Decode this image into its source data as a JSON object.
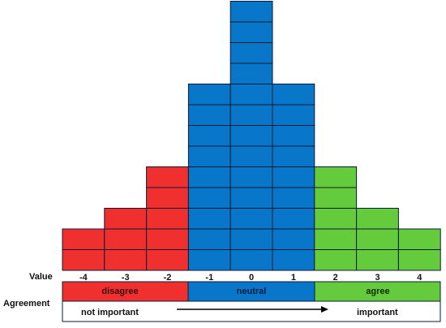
{
  "grid": {
    "columns": [
      {
        "value": "-4",
        "cells": 2,
        "band": "disagree"
      },
      {
        "value": "-3",
        "cells": 3,
        "band": "disagree"
      },
      {
        "value": "-2",
        "cells": 5,
        "band": "disagree"
      },
      {
        "value": "-1",
        "cells": 9,
        "band": "neutral"
      },
      {
        "value": "0",
        "cells": 13,
        "band": "neutral"
      },
      {
        "value": "1",
        "cells": 9,
        "band": "neutral"
      },
      {
        "value": "2",
        "cells": 5,
        "band": "agree"
      },
      {
        "value": "3",
        "cells": 3,
        "band": "agree"
      },
      {
        "value": "4",
        "cells": 2,
        "band": "agree"
      }
    ]
  },
  "labels": {
    "value": "Value",
    "agreement": "Agreement"
  },
  "bands": {
    "disagree": {
      "label": "disagree",
      "color": "#f0302e"
    },
    "neutral": {
      "label": "neutral",
      "color": "#0877c9"
    },
    "agree": {
      "label": "agree",
      "color": "#64cc3c"
    }
  },
  "importance": {
    "left": "not important",
    "right": "important"
  },
  "colors": {
    "grid_line": "#0d1a33",
    "text": "#111111"
  }
}
